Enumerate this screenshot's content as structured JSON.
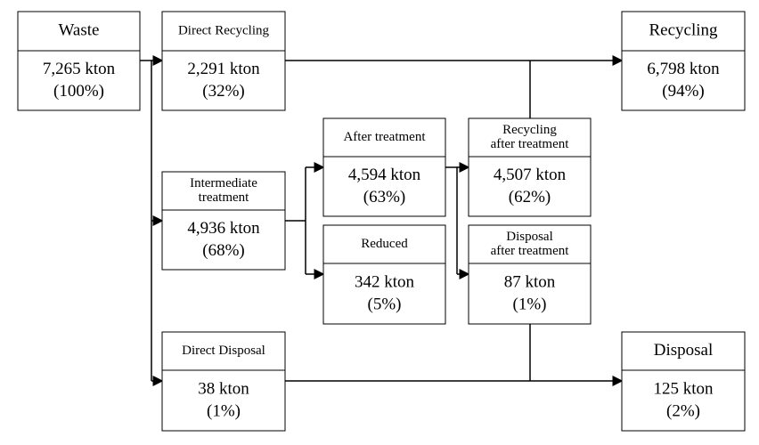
{
  "nodes": [
    {
      "title": [
        "Waste"
      ],
      "value": "7,265 kton",
      "share": "(100%)"
    },
    {
      "title": [
        "Direct Recycling"
      ],
      "value": "2,291 kton",
      "share": "(32%)"
    },
    {
      "title": [
        "Recycling"
      ],
      "value": "6,798 kton",
      "share": "(94%)"
    },
    {
      "title": [
        "After treatment"
      ],
      "value": "4,594 kton",
      "share": "(63%)"
    },
    {
      "title": [
        "Recycling",
        "after treatment"
      ],
      "value": "4,507 kton",
      "share": "(62%)"
    },
    {
      "title": [
        "Intermediate",
        "treatment"
      ],
      "value": "4,936 kton",
      "share": "(68%)"
    },
    {
      "title": [
        "Reduced"
      ],
      "value": "342 kton",
      "share": "(5%)"
    },
    {
      "title": [
        "Disposal",
        "after treatment"
      ],
      "value": "87 kton",
      "share": "(1%)"
    },
    {
      "title": [
        "Direct Disposal"
      ],
      "value": "38 kton",
      "share": "(1%)"
    },
    {
      "title": [
        "Disposal"
      ],
      "value": "125 kton",
      "share": "(2%)"
    }
  ]
}
